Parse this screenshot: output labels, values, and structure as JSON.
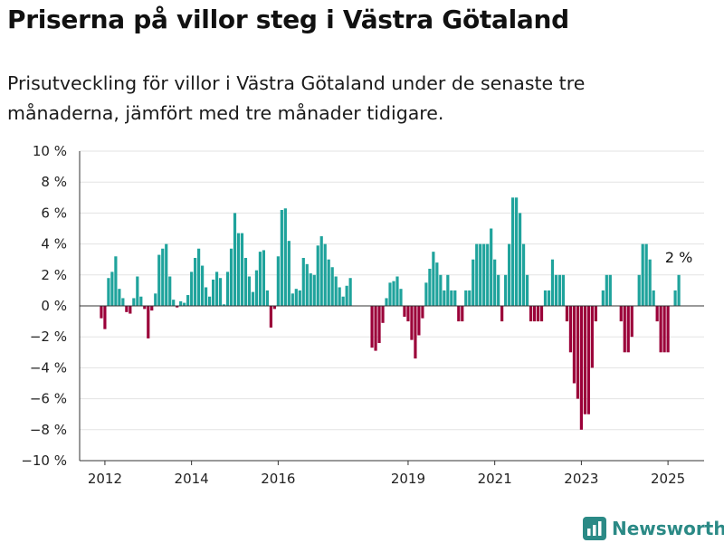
{
  "header": {
    "title": "Priserna på villor steg i Västra Götaland",
    "subtitle": "Prisutveckling för villor i Västra Götaland under de senaste tre månaderna, jämfört med tre månader tidigare."
  },
  "brand": {
    "name": "Newsworthy",
    "icon": "bar-chart-logo-icon"
  },
  "colors": {
    "positive": "#1fa39c",
    "negative": "#9b0039",
    "axis": "#333333",
    "grid": "#e3e3e3"
  },
  "chart_data": {
    "type": "bar",
    "title": "Priserna på villor steg i Västra Götaland",
    "subtitle": "Prisutveckling för villor i Västra Götaland under de senaste tre månaderna, jämfört med tre månader tidigare.",
    "unit": "%",
    "ylim": [
      -10,
      10
    ],
    "yticks": [
      -10,
      -8,
      -6,
      -4,
      -2,
      0,
      2,
      4,
      6,
      8,
      10
    ],
    "ytick_labels": [
      "−10 %",
      "−8 %",
      "−6 %",
      "−4 %",
      "−2 %",
      "0 %",
      "2 %",
      "4 %",
      "6 %",
      "8 %",
      "10 %"
    ],
    "xlim": [
      "2011-06",
      "2025-11"
    ],
    "xticks": [
      {
        "date": "2012-01",
        "label": "2012"
      },
      {
        "date": "2014-01",
        "label": "2014"
      },
      {
        "date": "2016-01",
        "label": "2016"
      },
      {
        "date": "2019-01",
        "label": "2019"
      },
      {
        "date": "2021-01",
        "label": "2021"
      },
      {
        "date": "2023-01",
        "label": "2023"
      },
      {
        "date": "2025-01",
        "label": "2025"
      }
    ],
    "grid": true,
    "bars": [
      {
        "date": "2011-12",
        "value": -0.8
      },
      {
        "date": "2012-01",
        "value": -1.5
      },
      {
        "date": "2012-02",
        "value": 1.8
      },
      {
        "date": "2012-03",
        "value": 2.2
      },
      {
        "date": "2012-04",
        "value": 3.2
      },
      {
        "date": "2012-05",
        "value": 1.1
      },
      {
        "date": "2012-06",
        "value": 0.5
      },
      {
        "date": "2012-07",
        "value": -0.4
      },
      {
        "date": "2012-08",
        "value": -0.5
      },
      {
        "date": "2012-09",
        "value": 0.5
      },
      {
        "date": "2012-10",
        "value": 1.9
      },
      {
        "date": "2012-11",
        "value": 0.6
      },
      {
        "date": "2012-12",
        "value": -0.2
      },
      {
        "date": "2013-01",
        "value": -2.1
      },
      {
        "date": "2013-02",
        "value": -0.3
      },
      {
        "date": "2013-03",
        "value": 0.8
      },
      {
        "date": "2013-04",
        "value": 3.3
      },
      {
        "date": "2013-05",
        "value": 3.7
      },
      {
        "date": "2013-06",
        "value": 4.0
      },
      {
        "date": "2013-07",
        "value": 1.9
      },
      {
        "date": "2013-08",
        "value": 0.4
      },
      {
        "date": "2013-09",
        "value": -0.1
      },
      {
        "date": "2013-10",
        "value": 0.3
      },
      {
        "date": "2013-11",
        "value": 0.2
      },
      {
        "date": "2013-12",
        "value": 0.7
      },
      {
        "date": "2014-01",
        "value": 2.2
      },
      {
        "date": "2014-02",
        "value": 3.1
      },
      {
        "date": "2014-03",
        "value": 3.7
      },
      {
        "date": "2014-04",
        "value": 2.6
      },
      {
        "date": "2014-05",
        "value": 1.2
      },
      {
        "date": "2014-06",
        "value": 0.6
      },
      {
        "date": "2014-07",
        "value": 1.7
      },
      {
        "date": "2014-08",
        "value": 2.2
      },
      {
        "date": "2014-09",
        "value": 1.8
      },
      {
        "date": "2014-10",
        "value": 0.1
      },
      {
        "date": "2014-11",
        "value": 2.2
      },
      {
        "date": "2014-12",
        "value": 3.7
      },
      {
        "date": "2015-01",
        "value": 6.0
      },
      {
        "date": "2015-02",
        "value": 4.7
      },
      {
        "date": "2015-03",
        "value": 4.7
      },
      {
        "date": "2015-04",
        "value": 3.1
      },
      {
        "date": "2015-05",
        "value": 1.9
      },
      {
        "date": "2015-06",
        "value": 0.9
      },
      {
        "date": "2015-07",
        "value": 2.3
      },
      {
        "date": "2015-08",
        "value": 3.5
      },
      {
        "date": "2015-09",
        "value": 3.6
      },
      {
        "date": "2015-10",
        "value": 1.0
      },
      {
        "date": "2015-11",
        "value": -1.4
      },
      {
        "date": "2015-12",
        "value": -0.2
      },
      {
        "date": "2016-01",
        "value": 3.2
      },
      {
        "date": "2016-02",
        "value": 6.2
      },
      {
        "date": "2016-03",
        "value": 6.3
      },
      {
        "date": "2016-04",
        "value": 4.2
      },
      {
        "date": "2016-05",
        "value": 0.8
      },
      {
        "date": "2016-06",
        "value": 1.1
      },
      {
        "date": "2016-07",
        "value": 1.0
      },
      {
        "date": "2016-08",
        "value": 3.1
      },
      {
        "date": "2016-09",
        "value": 2.7
      },
      {
        "date": "2016-10",
        "value": 2.1
      },
      {
        "date": "2016-11",
        "value": 2.0
      },
      {
        "date": "2016-12",
        "value": 3.9
      },
      {
        "date": "2017-01",
        "value": 4.5
      },
      {
        "date": "2017-02",
        "value": 4.0
      },
      {
        "date": "2017-03",
        "value": 3.0
      },
      {
        "date": "2017-04",
        "value": 2.5
      },
      {
        "date": "2017-05",
        "value": 1.9
      },
      {
        "date": "2017-06",
        "value": 1.2
      },
      {
        "date": "2017-07",
        "value": 0.6
      },
      {
        "date": "2017-08",
        "value": 1.3
      },
      {
        "date": "2017-09",
        "value": 1.8
      },
      {
        "date": "2018-03",
        "value": -2.7
      },
      {
        "date": "2018-04",
        "value": -2.9
      },
      {
        "date": "2018-05",
        "value": -2.4
      },
      {
        "date": "2018-06",
        "value": -1.1
      },
      {
        "date": "2018-07",
        "value": 0.5
      },
      {
        "date": "2018-08",
        "value": 1.5
      },
      {
        "date": "2018-09",
        "value": 1.6
      },
      {
        "date": "2018-10",
        "value": 1.9
      },
      {
        "date": "2018-11",
        "value": 1.1
      },
      {
        "date": "2018-12",
        "value": -0.7
      },
      {
        "date": "2019-01",
        "value": -1.0
      },
      {
        "date": "2019-02",
        "value": -2.2
      },
      {
        "date": "2019-03",
        "value": -3.4
      },
      {
        "date": "2019-04",
        "value": -1.9
      },
      {
        "date": "2019-05",
        "value": -0.8
      },
      {
        "date": "2019-06",
        "value": 1.5
      },
      {
        "date": "2019-07",
        "value": 2.4
      },
      {
        "date": "2019-08",
        "value": 3.5
      },
      {
        "date": "2019-09",
        "value": 2.8
      },
      {
        "date": "2019-10",
        "value": 2.0
      },
      {
        "date": "2019-11",
        "value": 1.0
      },
      {
        "date": "2019-12",
        "value": 2.0
      },
      {
        "date": "2020-01",
        "value": 1.0
      },
      {
        "date": "2020-02",
        "value": 1.0
      },
      {
        "date": "2020-03",
        "value": -1.0
      },
      {
        "date": "2020-04",
        "value": -1.0
      },
      {
        "date": "2020-05",
        "value": 1.0
      },
      {
        "date": "2020-06",
        "value": 1.0
      },
      {
        "date": "2020-07",
        "value": 3.0
      },
      {
        "date": "2020-08",
        "value": 4.0
      },
      {
        "date": "2020-09",
        "value": 4.0
      },
      {
        "date": "2020-10",
        "value": 4.0
      },
      {
        "date": "2020-11",
        "value": 4.0
      },
      {
        "date": "2020-12",
        "value": 5.0
      },
      {
        "date": "2021-01",
        "value": 3.0
      },
      {
        "date": "2021-02",
        "value": 2.0
      },
      {
        "date": "2021-03",
        "value": -1.0
      },
      {
        "date": "2021-04",
        "value": 2.0
      },
      {
        "date": "2021-05",
        "value": 4.0
      },
      {
        "date": "2021-06",
        "value": 7.0
      },
      {
        "date": "2021-07",
        "value": 7.0
      },
      {
        "date": "2021-08",
        "value": 6.0
      },
      {
        "date": "2021-09",
        "value": 4.0
      },
      {
        "date": "2021-10",
        "value": 2.0
      },
      {
        "date": "2021-11",
        "value": -1.0
      },
      {
        "date": "2021-12",
        "value": -1.0
      },
      {
        "date": "2022-01",
        "value": -1.0
      },
      {
        "date": "2022-02",
        "value": -1.0
      },
      {
        "date": "2022-03",
        "value": 1.0
      },
      {
        "date": "2022-04",
        "value": 1.0
      },
      {
        "date": "2022-05",
        "value": 3.0
      },
      {
        "date": "2022-06",
        "value": 2.0
      },
      {
        "date": "2022-07",
        "value": 2.0
      },
      {
        "date": "2022-08",
        "value": 2.0
      },
      {
        "date": "2022-09",
        "value": -1.0
      },
      {
        "date": "2022-10",
        "value": -3.0
      },
      {
        "date": "2022-11",
        "value": -5.0
      },
      {
        "date": "2022-12",
        "value": -6.0
      },
      {
        "date": "2023-01",
        "value": -8.0
      },
      {
        "date": "2023-02",
        "value": -7.0
      },
      {
        "date": "2023-03",
        "value": -7.0
      },
      {
        "date": "2023-04",
        "value": -4.0
      },
      {
        "date": "2023-05",
        "value": -1.0
      },
      {
        "date": "2023-07",
        "value": 1.0
      },
      {
        "date": "2023-08",
        "value": 2.0
      },
      {
        "date": "2023-09",
        "value": 2.0
      },
      {
        "date": "2023-12",
        "value": -1.0
      },
      {
        "date": "2024-01",
        "value": -3.0
      },
      {
        "date": "2024-02",
        "value": -3.0
      },
      {
        "date": "2024-03",
        "value": -2.0
      },
      {
        "date": "2024-05",
        "value": 2.0
      },
      {
        "date": "2024-06",
        "value": 4.0
      },
      {
        "date": "2024-07",
        "value": 4.0
      },
      {
        "date": "2024-08",
        "value": 3.0
      },
      {
        "date": "2024-09",
        "value": 1.0
      },
      {
        "date": "2024-10",
        "value": -1.0
      },
      {
        "date": "2024-11",
        "value": -3.0
      },
      {
        "date": "2024-12",
        "value": -3.0
      },
      {
        "date": "2025-01",
        "value": -3.0
      },
      {
        "date": "2025-03",
        "value": 1.0
      },
      {
        "date": "2025-04",
        "value": 2.0
      }
    ],
    "annotations": [
      {
        "date": "2025-04",
        "value": 2.0,
        "text": "2 %"
      }
    ]
  }
}
